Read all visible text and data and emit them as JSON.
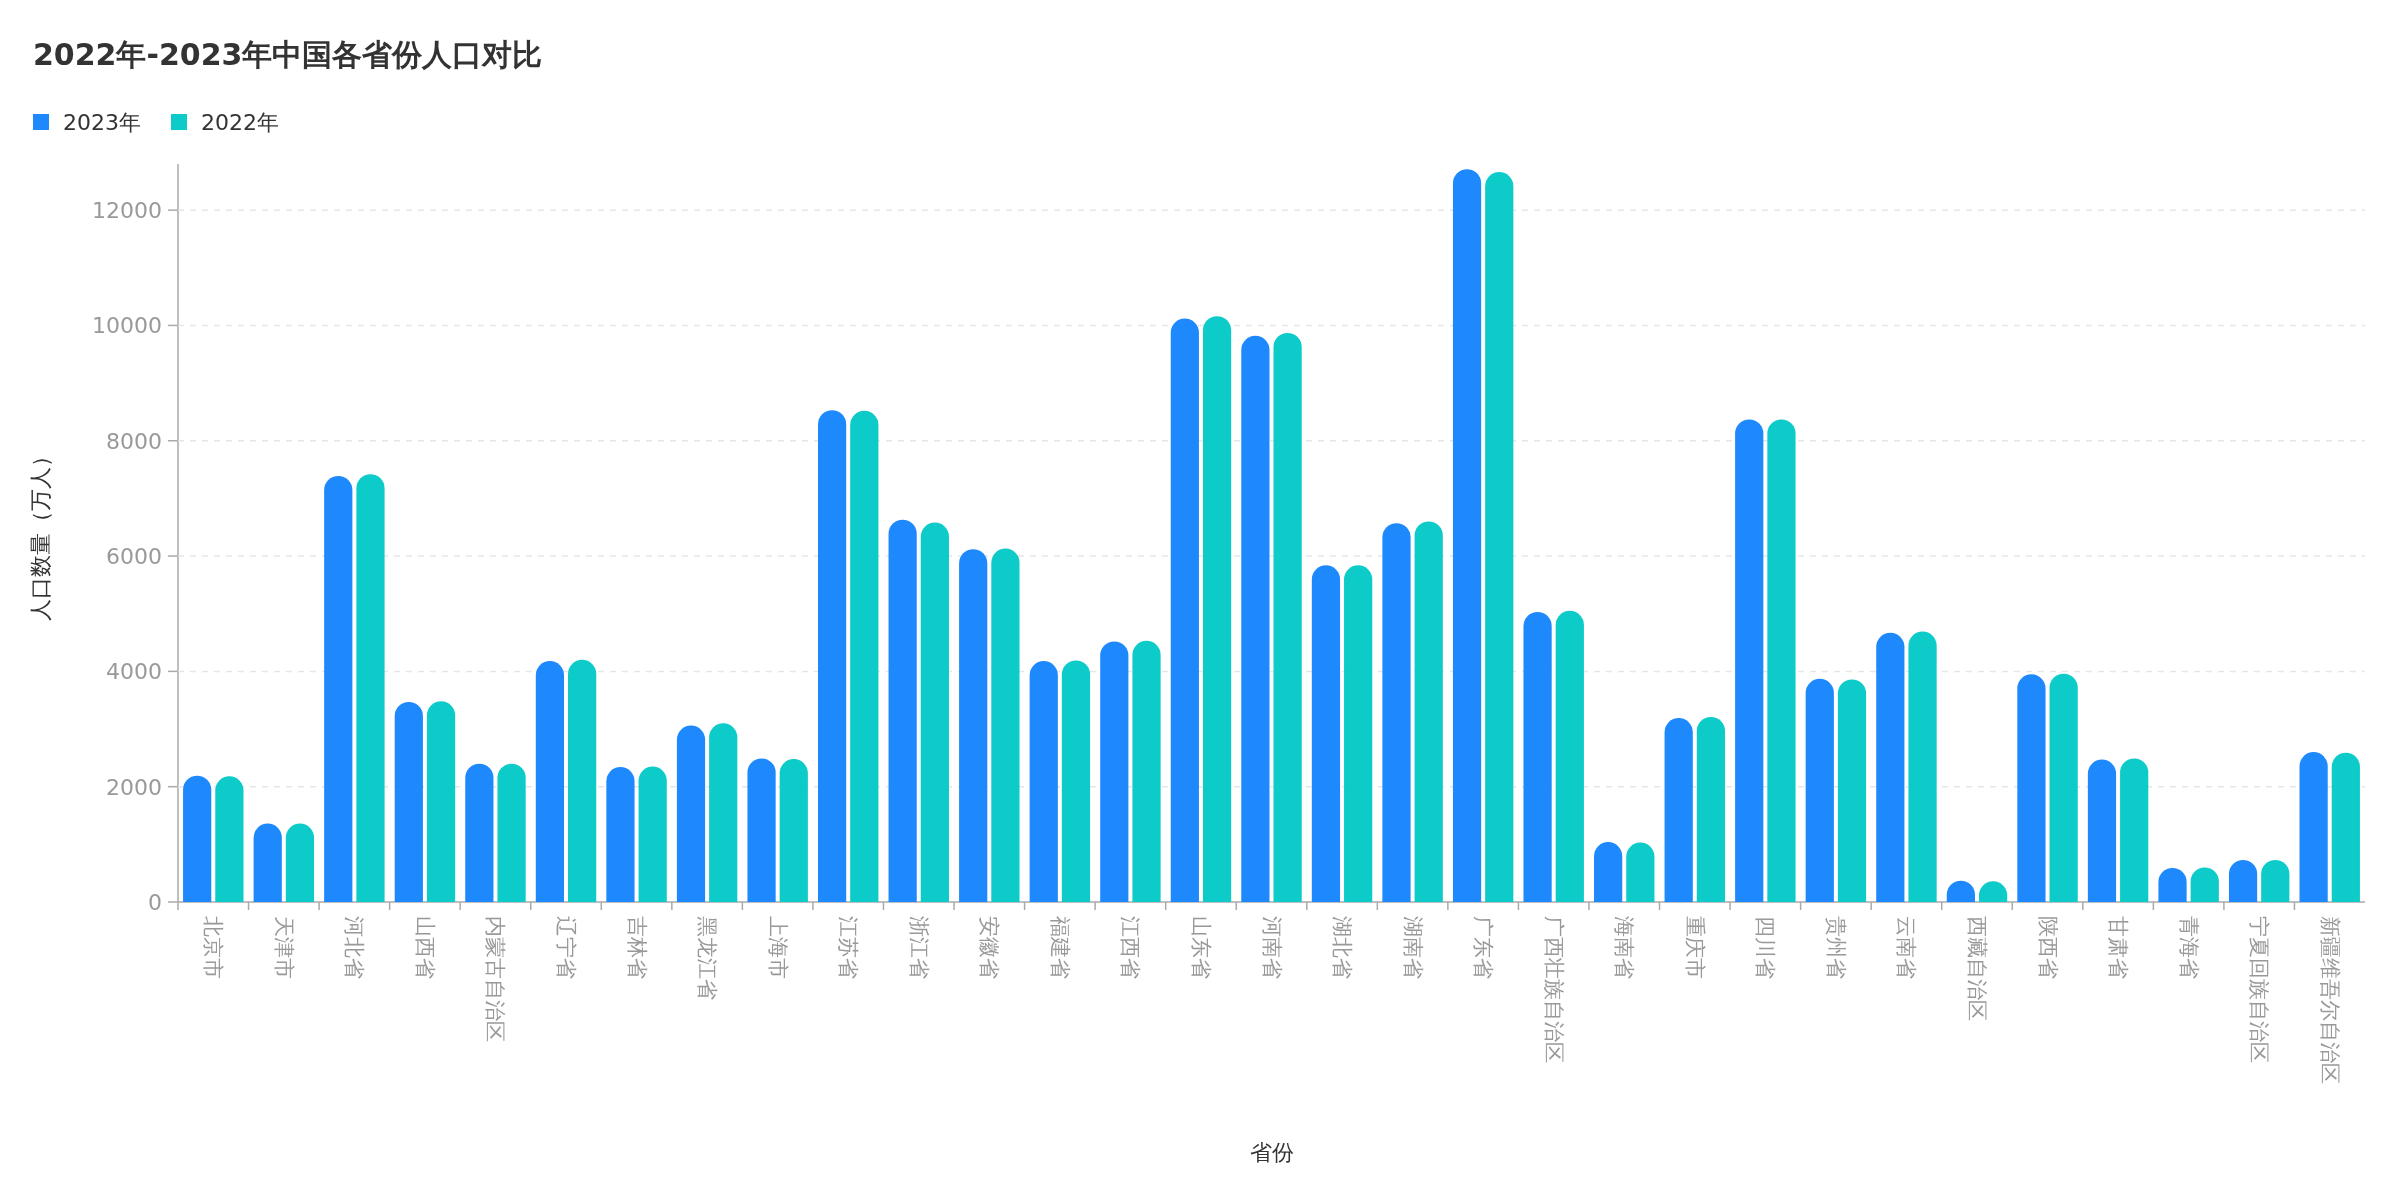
{
  "chart_data": {
    "type": "bar",
    "title": "2022年-2023年中国各省份人口对比",
    "xlabel": "省份",
    "ylabel": "人口数量（万人）",
    "categories": [
      "北京市",
      "天津市",
      "河北省",
      "山西省",
      "内蒙古自治区",
      "辽宁省",
      "吉林省",
      "黑龙江省",
      "上海市",
      "江苏省",
      "浙江省",
      "安徽省",
      "福建省",
      "江西省",
      "山东省",
      "河南省",
      "湖北省",
      "湖南省",
      "广东省",
      "广西壮族自治区",
      "海南省",
      "重庆市",
      "四川省",
      "贵州省",
      "云南省",
      "西藏自治区",
      "陕西省",
      "甘肃省",
      "青海省",
      "宁夏回族自治区",
      "新疆维吾尔自治区"
    ],
    "series": [
      {
        "name": "2023年",
        "color": "#1e88fd",
        "values": [
          2190,
          1360,
          7390,
          3470,
          2400,
          4180,
          2340,
          3060,
          2490,
          8530,
          6630,
          6120,
          4180,
          4520,
          10120,
          9820,
          5840,
          6570,
          12710,
          5030,
          1040,
          3190,
          8370,
          3870,
          4670,
          370,
          3950,
          2470,
          590,
          730,
          2600
        ]
      },
      {
        "name": "2022年",
        "color": "#0ccbc8",
        "values": [
          2180,
          1360,
          7420,
          3480,
          2400,
          4200,
          2350,
          3100,
          2480,
          8520,
          6580,
          6130,
          4190,
          4530,
          10160,
          9870,
          5840,
          6600,
          12660,
          5050,
          1030,
          3210,
          8370,
          3860,
          4690,
          360,
          3960,
          2490,
          600,
          730,
          2590
        ]
      }
    ],
    "ylim": [
      0,
      12800
    ],
    "yticks": [
      0,
      2000,
      4000,
      6000,
      8000,
      10000,
      12000
    ],
    "grid": "y",
    "legend": "top left"
  }
}
